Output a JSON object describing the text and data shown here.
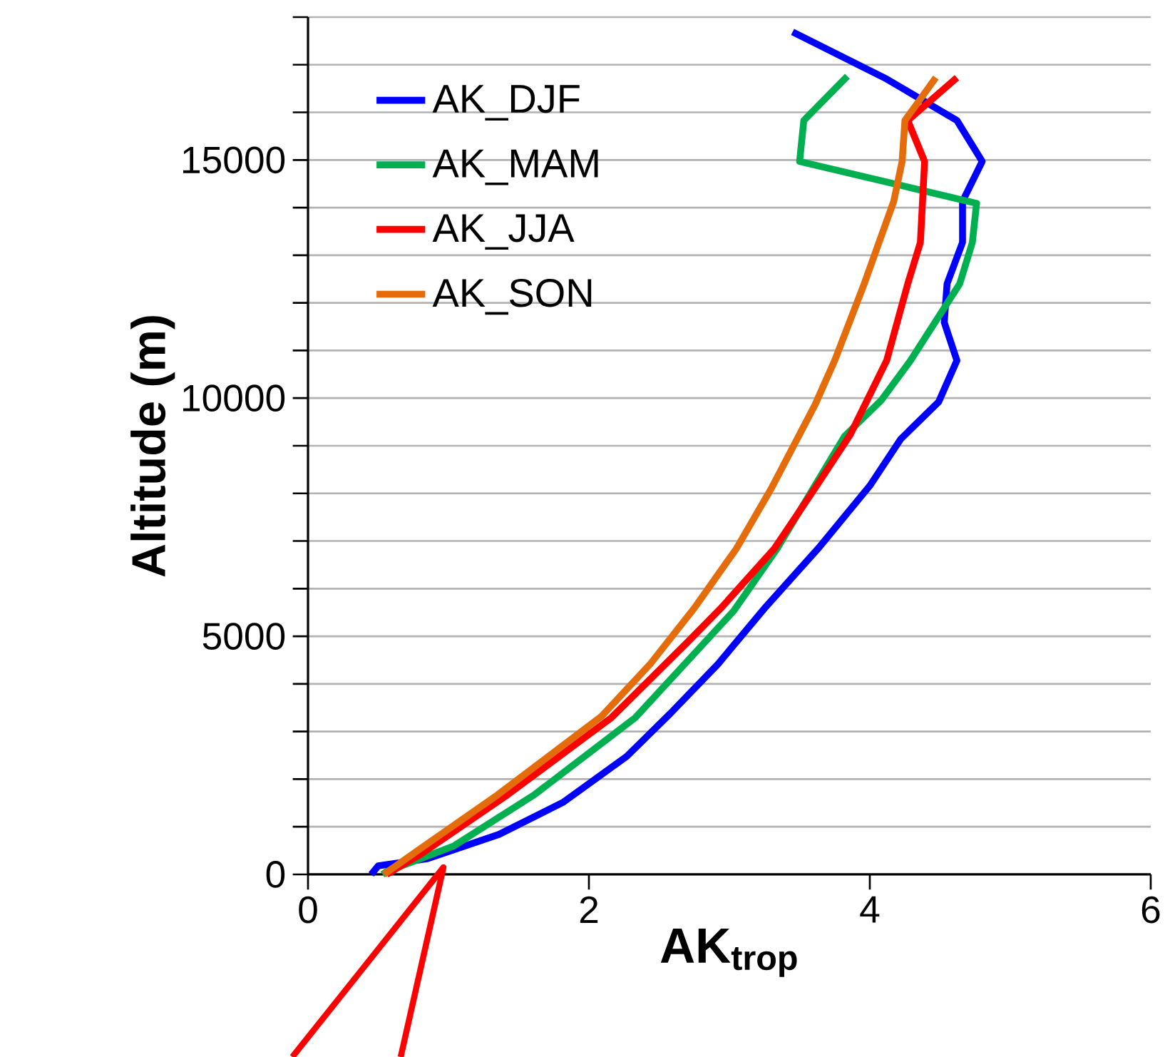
{
  "chart_data": {
    "type": "line",
    "xlabel": "AK$_{trop}$",
    "ylabel": "Altitude (m)",
    "xlim": [
      0,
      6
    ],
    "xticks": [
      0,
      2,
      4,
      6
    ],
    "ylim": [
      0,
      18000
    ],
    "yticks": [
      0,
      {
        "value": 1000,
        "label": null
      },
      {
        "value": 2000,
        "label": null
      },
      {
        "value": 3000,
        "label": null
      },
      {
        "value": 4000,
        "label": null
      },
      5000,
      {
        "value": 6000,
        "label": null
      },
      {
        "value": 7000,
        "label": null
      },
      {
        "value": 8000,
        "label": null
      },
      {
        "value": 9000,
        "label": null
      },
      10000,
      {
        "value": 11000,
        "label": null
      },
      {
        "value": 12000,
        "label": null
      },
      {
        "value": 13000,
        "label": null
      },
      {
        "value": 14000,
        "label": null
      },
      15000,
      {
        "value": 16000,
        "label": null
      },
      {
        "value": 17000,
        "label": null
      },
      {
        "value": 18000,
        "label": null
      }
    ],
    "grid": "y",
    "legend": "top left",
    "marker": "none",
    "line_style": "solid",
    "series": [
      {
        "name": "AK_DJF",
        "color": "#0000ff",
        "x": [
          0.45,
          0.5,
          0.85,
          1.36,
          1.82,
          2.27,
          2.58,
          2.92,
          3.26,
          3.64,
          4.0,
          4.22,
          4.49,
          4.62,
          4.53,
          4.55,
          4.66,
          4.66,
          4.8,
          4.62,
          4.12,
          3.45
        ],
        "values": [
          0,
          180,
          330,
          840,
          1520,
          2480,
          3380,
          4420,
          5620,
          6870,
          8160,
          9140,
          9920,
          10790,
          11590,
          12400,
          13270,
          14130,
          14970,
          15830,
          16700,
          17690
        ]
      },
      {
        "name": "AK_MAM",
        "color": "#00b050",
        "x": [
          0.53,
          0.56,
          1.04,
          1.61,
          2.33,
          3.03,
          3.34,
          3.82,
          4.08,
          4.29,
          4.64,
          4.73,
          4.76,
          3.5,
          3.53,
          3.84
        ],
        "values": [
          0,
          60,
          600,
          1670,
          3290,
          5530,
          6840,
          9200,
          9950,
          10790,
          12400,
          13270,
          14090,
          14970,
          15830,
          16760
        ]
      },
      {
        "name": "AK_JJA",
        "color": "#ff0000",
        "x": [
          0.56,
          0.8,
          1.42,
          2.16,
          2.71,
          2.94,
          3.32,
          3.61,
          3.86,
          4.12,
          4.27,
          4.36,
          4.39,
          4.27,
          4.62
        ],
        "values": [
          0,
          420,
          1670,
          3290,
          4900,
          5590,
          6840,
          8110,
          9230,
          10790,
          12400,
          13270,
          14970,
          15830,
          16730
        ]
      },
      {
        "name": "AK_SON",
        "color": "#e46c0a",
        "x": [
          0.54,
          0.8,
          1.35,
          2.09,
          2.44,
          2.75,
          3.05,
          3.3,
          3.61,
          3.75,
          3.96,
          4.17,
          4.23,
          4.25,
          4.47
        ],
        "values": [
          0,
          540,
          1670,
          3320,
          4430,
          5590,
          6840,
          8110,
          9860,
          10790,
          12400,
          14130,
          14970,
          15830,
          16730
        ]
      }
    ]
  }
}
